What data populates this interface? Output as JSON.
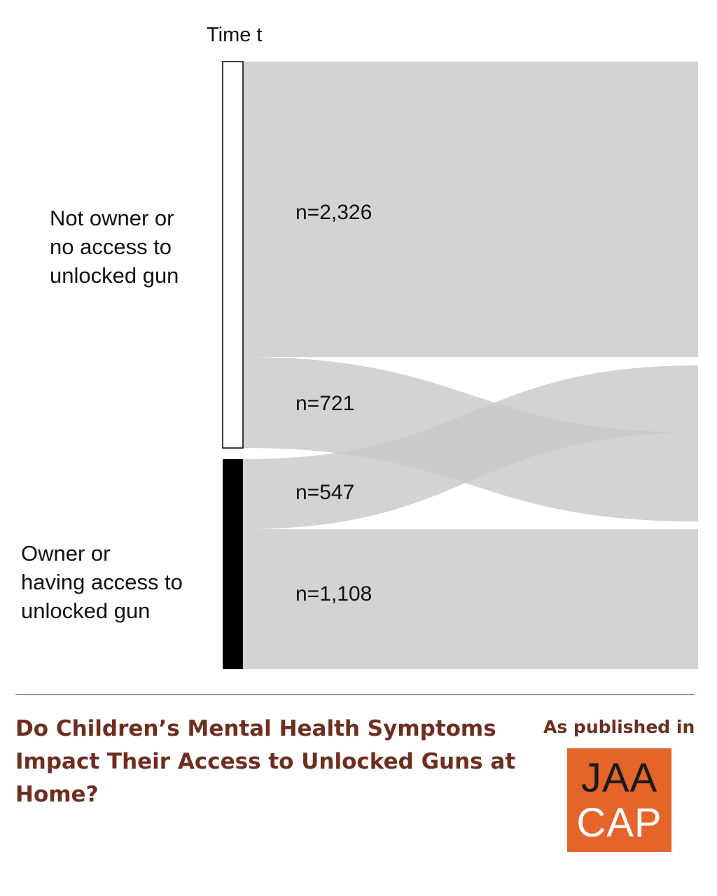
{
  "diagram": {
    "time_label": "Time t",
    "nodes": [
      {
        "id": "not_owner",
        "label_lines": [
          "Not owner or",
          "no access to",
          "unlocked gun"
        ],
        "fill": "#ffffff"
      },
      {
        "id": "owner",
        "label_lines": [
          "Owner or",
          "having access to",
          "unlocked gun"
        ],
        "fill": "#000000"
      }
    ],
    "flows": [
      {
        "from": "not_owner",
        "to": "not_owner",
        "label": "n=2,326",
        "value": 2326
      },
      {
        "from": "not_owner",
        "to": "owner",
        "label": "n=721",
        "value": 721
      },
      {
        "from": "owner",
        "to": "not_owner",
        "label": "n=547",
        "value": 547
      },
      {
        "from": "owner",
        "to": "owner",
        "label": "n=1,108",
        "value": 1108
      }
    ],
    "colors": {
      "flow": "#d3d3d3",
      "overlap": "#a9a9a9"
    }
  },
  "footer": {
    "headline_lines": [
      "Do Children’s Mental Health Symptoms",
      "Impact Their Access to Unlocked Guns at",
      "Home?"
    ],
    "published_label": "As published in",
    "logo_lines": [
      "JAA",
      "CAP"
    ],
    "colors": {
      "text": "#6e2e1f",
      "logo": "#e5642a"
    }
  }
}
